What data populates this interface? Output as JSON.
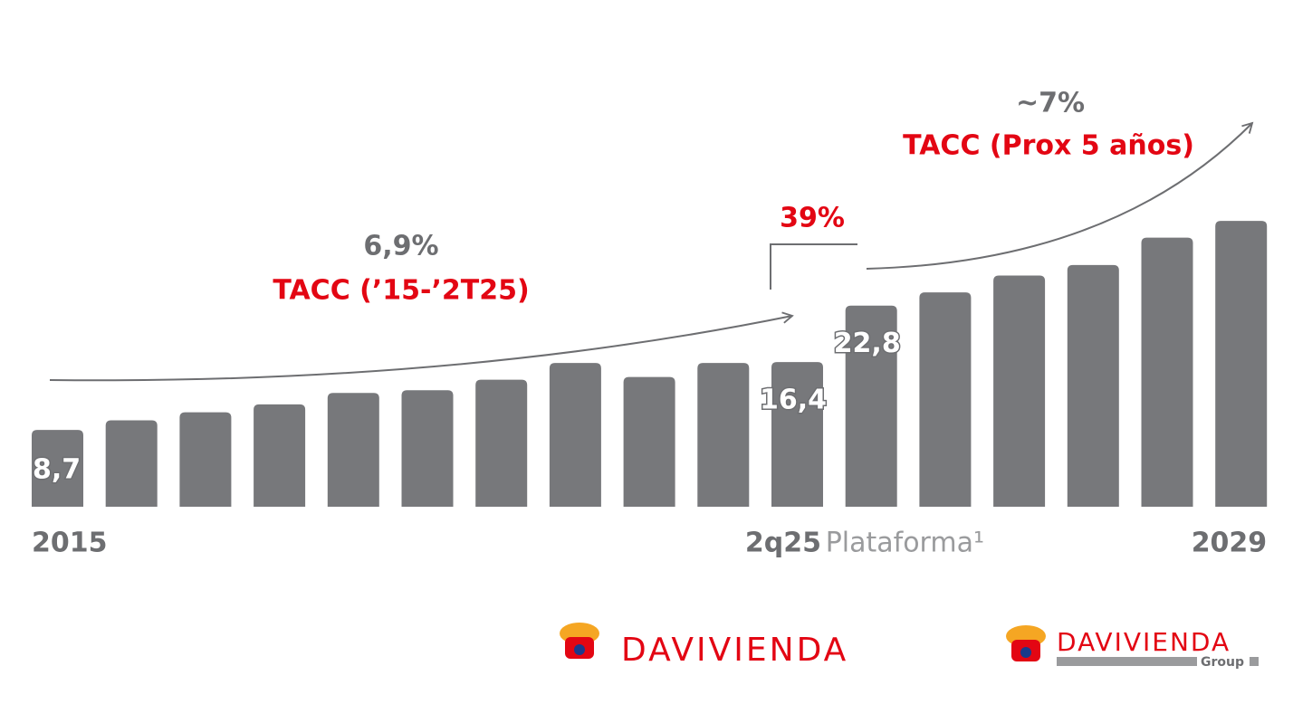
{
  "chart_data": {
    "type": "bar",
    "categories": [
      "2015",
      null,
      null,
      null,
      null,
      null,
      null,
      null,
      null,
      null,
      "2q25",
      "Plataforma¹",
      null,
      null,
      null,
      null,
      "2029"
    ],
    "values": [
      8.7,
      9.8,
      10.7,
      11.6,
      12.9,
      13.2,
      14.4,
      16.3,
      14.7,
      16.3,
      16.4,
      22.8,
      24.3,
      26.2,
      27.4,
      30.5,
      32.4
    ],
    "value_labels": [
      "8,7",
      null,
      null,
      null,
      null,
      null,
      null,
      null,
      null,
      null,
      "16,4",
      "22,8",
      null,
      null,
      null,
      null,
      null
    ],
    "color": "#77787b",
    "annotations": [
      "6,9%",
      "TACC (’15-’2T25)",
      "39%",
      "~7%",
      "TACC (Prox 5 años)"
    ]
  },
  "logos": [
    {
      "text": "DAVIVIENDA"
    },
    {
      "text": "DAVIVIENDA",
      "subtext": "Group"
    }
  ]
}
